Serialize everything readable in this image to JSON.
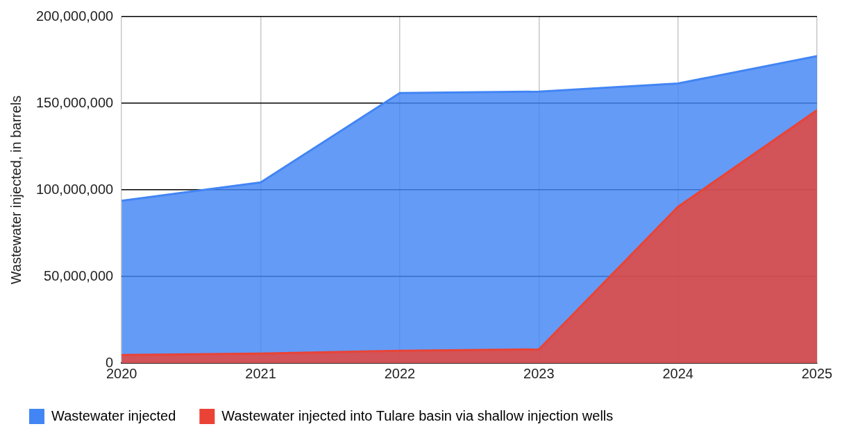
{
  "chart_data": {
    "type": "area",
    "ylabel": "Wastewater injected, in barrels",
    "x": [
      2020,
      2021,
      2022,
      2023,
      2024,
      2025
    ],
    "xlim": [
      2020,
      2025
    ],
    "xticks": [
      2020,
      2021,
      2022,
      2023,
      2024,
      2025
    ],
    "ylim": [
      0,
      200000000
    ],
    "yticks": [
      0,
      {
        "value": 50000000,
        "label": "50,000,000"
      },
      {
        "value": 100000000,
        "label": "100,000,000"
      },
      {
        "value": 150000000,
        "label": "150,000,000"
      },
      {
        "value": 200000000,
        "label": "200,000,000"
      }
    ],
    "series": [
      {
        "name": "Wastewater injected",
        "color": "#4285f4",
        "values": [
          93700000,
          104300000,
          155900000,
          156700000,
          161400000,
          177200000
        ]
      },
      {
        "name": "Wastewater injected into Tulare basin via shallow injection wells",
        "color": "#ea4335",
        "values": [
          4700000,
          5500000,
          7100000,
          7900000,
          90200000,
          146000000
        ]
      }
    ],
    "grid": true,
    "legend": "bottom left"
  }
}
